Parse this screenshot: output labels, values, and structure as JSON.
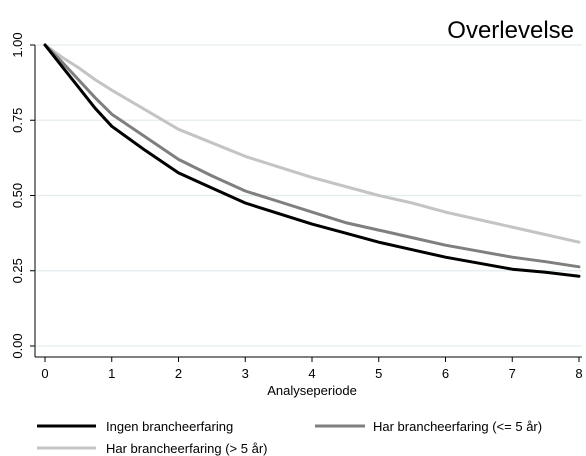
{
  "chart_data": {
    "type": "line",
    "title": "Overlevelse",
    "xlabel": "Analyseperiode",
    "ylabel": "",
    "xlim": [
      0,
      8
    ],
    "ylim": [
      0,
      1
    ],
    "x_ticks": [
      0,
      1,
      2,
      3,
      4,
      5,
      6,
      7,
      8
    ],
    "y_ticks": [
      0,
      0.25,
      0.5,
      0.75,
      1
    ],
    "x_tick_labels": [
      "0",
      "1",
      "2",
      "3",
      "4",
      "5",
      "6",
      "7",
      "8"
    ],
    "y_tick_labels": [
      "0.00",
      "0.25",
      "0.50",
      "0.75",
      "1.00"
    ],
    "grid": true,
    "legend_placement": "bottom",
    "series": [
      {
        "name": "Ingen brancheerfaring",
        "color": "#000000",
        "x": [
          0,
          0.25,
          0.5,
          0.75,
          1,
          1.5,
          2,
          2.5,
          3,
          3.5,
          4,
          4.5,
          5,
          5.5,
          6,
          6.5,
          7,
          7.5,
          8
        ],
        "y": [
          1.0,
          0.93,
          0.86,
          0.79,
          0.73,
          0.65,
          0.575,
          0.525,
          0.475,
          0.44,
          0.405,
          0.375,
          0.345,
          0.32,
          0.295,
          0.275,
          0.255,
          0.245,
          0.232
        ]
      },
      {
        "name": "Har brancheerfaring (<= 5 år)",
        "color": "#7f7f7f",
        "x": [
          0,
          0.25,
          0.5,
          0.75,
          1,
          1.5,
          2,
          2.5,
          3,
          3.5,
          4,
          4.5,
          5,
          5.5,
          6,
          6.5,
          7,
          7.5,
          8
        ],
        "y": [
          1.0,
          0.945,
          0.885,
          0.825,
          0.77,
          0.695,
          0.62,
          0.565,
          0.515,
          0.48,
          0.445,
          0.41,
          0.385,
          0.36,
          0.335,
          0.315,
          0.295,
          0.28,
          0.263
        ]
      },
      {
        "name": "Har brancheerfaring (> 5 år)",
        "color": "#c4c4c4",
        "x": [
          0,
          0.25,
          0.5,
          0.75,
          1,
          1.5,
          2,
          2.5,
          3,
          3.5,
          4,
          4.5,
          5,
          5.5,
          6,
          6.5,
          7,
          7.5,
          8
        ],
        "y": [
          1.0,
          0.96,
          0.925,
          0.885,
          0.85,
          0.785,
          0.72,
          0.675,
          0.63,
          0.595,
          0.56,
          0.53,
          0.5,
          0.475,
          0.445,
          0.42,
          0.395,
          0.37,
          0.345
        ]
      }
    ]
  }
}
